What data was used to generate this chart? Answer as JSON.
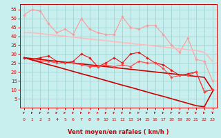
{
  "background_color": "#c8eeee",
  "grid_color": "#99cccc",
  "xlabel": "Vent moyen/en rafales ( km/h )",
  "xlabel_color": "#cc0000",
  "tick_color": "#cc0000",
  "x_values": [
    0,
    1,
    2,
    3,
    4,
    5,
    6,
    7,
    8,
    9,
    10,
    11,
    12,
    13,
    14,
    15,
    16,
    17,
    18,
    19,
    20,
    21,
    22,
    23
  ],
  "series": [
    {
      "color": "#ff9999",
      "linewidth": 0.8,
      "marker": "D",
      "markersize": 1.8,
      "y": [
        52,
        55,
        54,
        47,
        42,
        44,
        41,
        50,
        44,
        42,
        41,
        41,
        51,
        45,
        44,
        46,
        46,
        41,
        35,
        31,
        39,
        27,
        26,
        15
      ]
    },
    {
      "color": "#ffbbbb",
      "linewidth": 1.2,
      "marker": null,
      "markersize": 0,
      "y": [
        42,
        42,
        41.5,
        41,
        40.5,
        40,
        39.5,
        39,
        38.5,
        38,
        37.5,
        37,
        36.5,
        36,
        35.5,
        35,
        34.5,
        34,
        33.5,
        33,
        32.5,
        32,
        31,
        26
      ]
    },
    {
      "color": "#ee1111",
      "linewidth": 0.8,
      "marker": "D",
      "markersize": 1.8,
      "y": [
        28,
        27,
        28,
        29,
        26,
        25,
        26,
        30,
        28,
        23,
        25,
        28,
        25,
        30,
        31,
        28,
        25,
        24,
        21,
        18,
        19,
        20,
        9,
        10
      ]
    },
    {
      "color": "#cc0000",
      "linewidth": 1.2,
      "marker": null,
      "markersize": 0,
      "y": [
        28,
        27.5,
        27,
        26.5,
        26,
        25.5,
        25,
        24.5,
        24,
        23.5,
        23,
        22.5,
        22,
        21.5,
        21,
        20.5,
        20,
        19.5,
        19,
        18.5,
        18,
        17.5,
        17,
        10
      ]
    },
    {
      "color": "#ff4444",
      "linewidth": 0.8,
      "marker": "D",
      "markersize": 1.8,
      "y": [
        28,
        27,
        26,
        26,
        25,
        25,
        25,
        24,
        23,
        23,
        24,
        23,
        24,
        23,
        26,
        25,
        25,
        22,
        17,
        18,
        18,
        20,
        9,
        10
      ]
    },
    {
      "color": "#cc0000",
      "linewidth": 1.2,
      "marker": null,
      "markersize": 0,
      "y": [
        28,
        26.7,
        25.4,
        24.1,
        22.9,
        21.6,
        20.3,
        19.0,
        17.8,
        16.5,
        15.2,
        13.9,
        12.6,
        11.4,
        10.1,
        8.8,
        7.5,
        6.3,
        5.0,
        3.7,
        2.4,
        1.1,
        0.5,
        9
      ]
    }
  ],
  "yticks": [
    5,
    10,
    15,
    20,
    25,
    30,
    35,
    40,
    45,
    50,
    55
  ],
  "ylim": [
    0,
    58
  ],
  "xlim": [
    -0.5,
    23.5
  ],
  "figwidth": 3.2,
  "figheight": 2.0,
  "dpi": 100
}
